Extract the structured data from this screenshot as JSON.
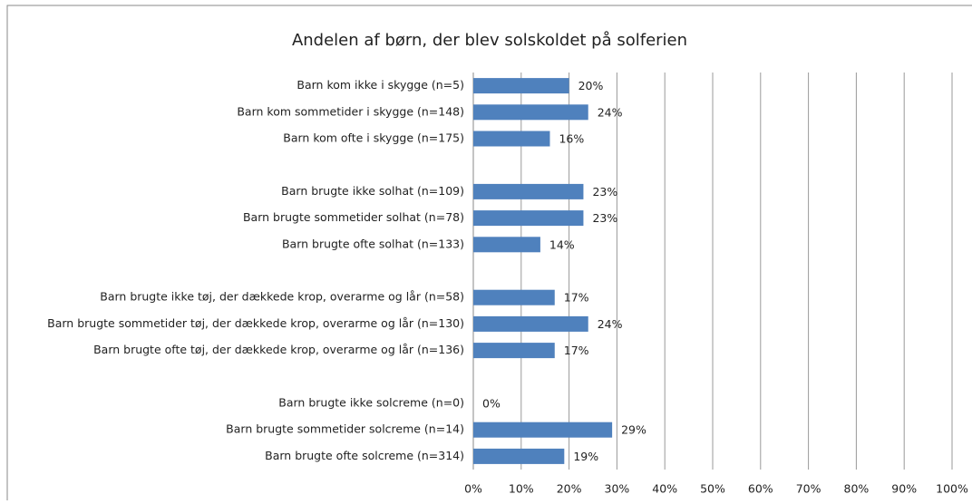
{
  "chart_data": {
    "type": "barh",
    "title": "Andelen af børn, der blev solskoldet på solferien",
    "categories": [
      "Barn kom ikke i skygge (n=5)",
      "Barn kom sommetider i skygge (n=148)",
      "Barn kom ofte i skygge (n=175)",
      null,
      "Barn brugte ikke solhat (n=109)",
      "Barn brugte sommetider solhat (n=78)",
      "Barn brugte ofte solhat (n=133)",
      null,
      "Barn brugte ikke tøj, der dækkede krop, overarme og lår (n=58)",
      "Barn brugte sommetider tøj, der dækkede krop, overarme og lår (n=130)",
      "Barn brugte ofte tøj, der dækkede krop, overarme og lår (n=136)",
      null,
      "Barn brugte ikke solcreme (n=0)",
      "Barn brugte sommetider solcreme (n=14)",
      "Barn brugte ofte solcreme (n=314)"
    ],
    "values": [
      20,
      24,
      16,
      null,
      23,
      23,
      14,
      null,
      17,
      24,
      17,
      null,
      0,
      29,
      19
    ],
    "value_labels": [
      "20%",
      "24%",
      "16%",
      null,
      "23%",
      "23%",
      "14%",
      null,
      "17%",
      "24%",
      "17%",
      null,
      "0%",
      "29%",
      "19%"
    ],
    "color": "#4f81bd",
    "xlim": [
      0,
      100
    ],
    "xticks": [
      {
        "value": 0,
        "label": "0%"
      },
      {
        "value": 10,
        "label": "10%"
      },
      {
        "value": 20,
        "label": "20%"
      },
      {
        "value": 30,
        "label": "30%"
      },
      {
        "value": 40,
        "label": "40%"
      },
      {
        "value": 50,
        "label": "50%"
      },
      {
        "value": 60,
        "label": "60%"
      },
      {
        "value": 70,
        "label": "70%"
      },
      {
        "value": 80,
        "label": "80%"
      },
      {
        "value": 90,
        "label": "90%"
      },
      {
        "value": 100,
        "label": "100%"
      }
    ],
    "grid": true
  }
}
